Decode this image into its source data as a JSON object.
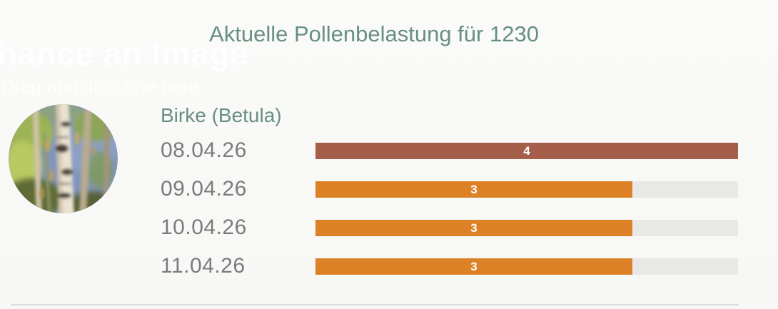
{
  "page": {
    "title": "Aktuelle Pollenbelastung für 1230"
  },
  "background_artifacts": {
    "ghost_title": "hance an Image",
    "ghost_subtitle": "Drag and drop one here"
  },
  "pollen": {
    "species": "Birke (Betula)",
    "photo": "birch-trees-with-catkins",
    "rows": [
      {
        "date": "08.04.26",
        "value": "4"
      },
      {
        "date": "09.04.26",
        "value": "3"
      },
      {
        "date": "10.04.26",
        "value": "3"
      },
      {
        "date": "11.04.26",
        "value": "3"
      }
    ]
  },
  "chart_data": {
    "type": "bar",
    "orientation": "horizontal",
    "title": "Aktuelle Pollenbelastung für 1230",
    "series_label": "Birke (Betula)",
    "categories": [
      "08.04.26",
      "09.04.26",
      "10.04.26",
      "11.04.26"
    ],
    "values": [
      4,
      3,
      3,
      3
    ],
    "value_min": 0,
    "value_max": 4,
    "value_labels_inside_bar": true,
    "grid": false,
    "legend": false,
    "level_colors": {
      "4": "#a55e49",
      "3": "#dd8126"
    },
    "track_color": "#e8e8e7"
  },
  "colors": {
    "accent_green": "#679082",
    "date_gray": "#7b7b7b",
    "level4_red": "#a55e49",
    "level3_orange": "#dd8126",
    "bar_track": "#e8e8e7",
    "background": "#f8f8f6",
    "divider": "#d9dae2",
    "bar_value_text": "#ffffff"
  }
}
